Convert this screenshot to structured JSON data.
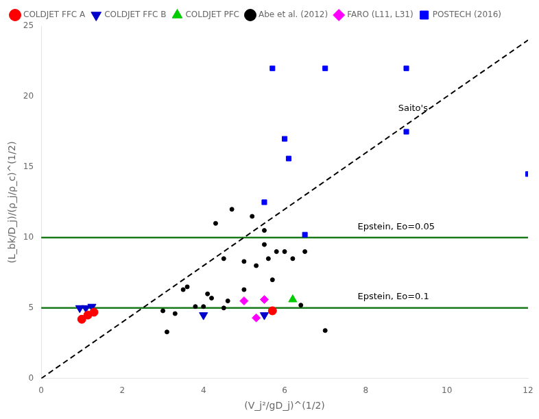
{
  "chart_data": {
    "type": "scatter",
    "xlabel": "(V_j²/gD_j)^(1/2)",
    "ylabel": "(L_bk/D_j)/(ρ_j/ρ_c)^(1/2)",
    "xlim": [
      0,
      12
    ],
    "ylim": [
      0,
      25
    ],
    "xticks": [
      0,
      2,
      4,
      6,
      8,
      10,
      12
    ],
    "yticks": [
      0,
      5,
      10,
      15,
      20,
      25
    ],
    "grid": false,
    "legend": "upper left",
    "series": [
      {
        "name": "COLDJET FFC A",
        "color": "#ff0000",
        "marker": "circle",
        "x": [
          1.0,
          1.15,
          1.3,
          5.7
        ],
        "values": [
          4.2,
          4.5,
          4.7,
          4.8
        ]
      },
      {
        "name": "COLDJET FFC B",
        "color": "#0000cc",
        "marker": "triangle_down",
        "x": [
          0.95,
          1.1,
          1.25,
          4.0,
          5.5
        ],
        "values": [
          5.0,
          5.0,
          5.1,
          4.5,
          4.5
        ]
      },
      {
        "name": "COLDJET PFC",
        "color": "#00cc00",
        "marker": "triangle_up",
        "x": [
          6.2
        ],
        "values": [
          5.6
        ]
      },
      {
        "name": "Abe et al. (2012)",
        "color": "#000000",
        "marker": "point",
        "x": [
          3.1,
          3.5,
          3.6,
          3.8,
          4.0,
          4.1,
          4.2,
          4.3,
          4.5,
          4.5,
          4.6,
          4.7,
          5.0,
          5.0,
          5.2,
          5.3,
          5.5,
          5.5,
          5.6,
          5.7,
          5.8,
          6.0,
          6.2,
          6.4,
          6.5,
          7.0,
          3.0,
          3.3
        ],
        "values": [
          3.3,
          6.3,
          6.5,
          5.1,
          5.1,
          6.0,
          5.7,
          11.0,
          8.5,
          5.0,
          5.5,
          12.0,
          8.3,
          6.3,
          11.5,
          8.0,
          10.5,
          9.5,
          8.5,
          7.0,
          9.0,
          9.0,
          8.5,
          5.2,
          9.0,
          3.4,
          4.8,
          4.6
        ]
      },
      {
        "name": "FARO (L11, L31)",
        "color": "#ff00ff",
        "marker": "diamond",
        "x": [
          5.0,
          5.3,
          5.5
        ],
        "values": [
          5.5,
          4.3,
          5.6
        ]
      },
      {
        "name": "POSTECH (2016)",
        "color": "#0000ff",
        "marker": "square",
        "x": [
          5.5,
          5.7,
          6.0,
          6.1,
          6.5,
          7.0,
          9.0,
          9.0,
          12.0
        ],
        "values": [
          12.5,
          22.0,
          17.0,
          15.6,
          10.2,
          22.0,
          17.5,
          22.0,
          14.5
        ]
      },
      {
        "type": "line",
        "color": "#000000",
        "line_style": "dashed",
        "x": [
          0,
          12
        ],
        "values": [
          0,
          24
        ]
      },
      {
        "type": "hline",
        "color": "#1a7a1a",
        "values": [
          10.0
        ]
      },
      {
        "type": "hline",
        "color": "#1a7a1a",
        "values": [
          5.0
        ]
      }
    ],
    "annotations": [
      {
        "text": "Saito's",
        "x": 8.8,
        "y": 19.0
      },
      {
        "text": "Epstein, Eo=0.05",
        "x": 7.8,
        "y": 10.6
      },
      {
        "text": "Epstein, Eo=0.1",
        "x": 7.8,
        "y": 5.6
      }
    ]
  }
}
